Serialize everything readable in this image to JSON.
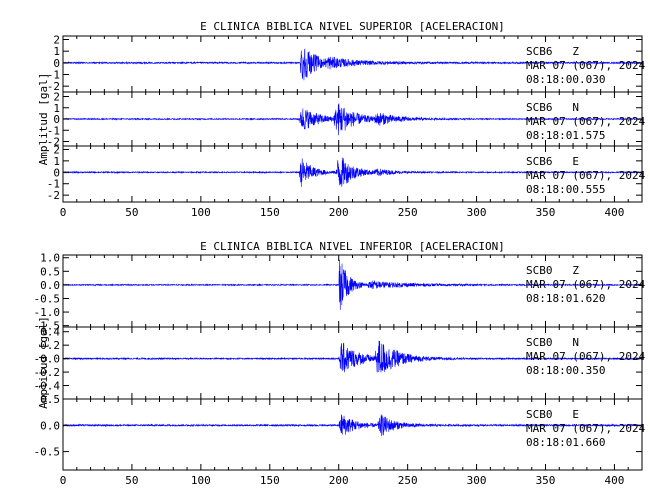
{
  "chart_data": [
    {
      "type": "line",
      "title": "E CLINICA BIBLICA NIVEL SUPERIOR [ACELERACION]",
      "xlabel": "",
      "ylabel": "Amplitud [gal]",
      "xlim": [
        0,
        420
      ],
      "x_ticks": [
        "0",
        "50",
        "100",
        "150",
        "200",
        "250",
        "300",
        "350",
        "400"
      ],
      "x_tick_values": [
        0,
        50,
        100,
        150,
        200,
        250,
        300,
        350,
        400
      ],
      "line_color": "#0000ff",
      "panels": [
        {
          "station": "SCB6",
          "component": "Z",
          "date": "MAR 07 (067), 2024",
          "time": "08:18:00.030",
          "ylim": [
            -2.5,
            2.3
          ],
          "y_ticks": [
            "2",
            "1",
            "0",
            "-1",
            "-2"
          ],
          "y_tick_values": [
            2,
            1,
            0,
            -1,
            -2
          ],
          "noise": 0.06,
          "events": [
            {
              "onset": 172,
              "peak": 2.0,
              "rise": 0.8,
              "decay": 10
            },
            {
              "onset": 190,
              "peak": 0.35,
              "rise": 3,
              "decay": 30
            }
          ]
        },
        {
          "station": "SCB6",
          "component": "N",
          "date": "MAR 07 (067), 2024",
          "time": "08:18:01.575",
          "ylim": [
            -2.4,
            2.4
          ],
          "y_ticks": [
            "2",
            "1",
            "0",
            "-1",
            "-2"
          ],
          "y_tick_values": [
            2,
            1,
            0,
            -1,
            -2
          ],
          "noise": 0.05,
          "events": [
            {
              "onset": 171,
              "peak": 1.4,
              "rise": 3,
              "decay": 12
            },
            {
              "onset": 196,
              "peak": 1.9,
              "rise": 4,
              "decay": 12
            },
            {
              "onset": 225,
              "peak": 0.6,
              "rise": 4,
              "decay": 15
            }
          ]
        },
        {
          "station": "SCB6",
          "component": "E",
          "date": "MAR 07 (067), 2024",
          "time": "08:18:00.555",
          "ylim": [
            -2.6,
            2.3
          ],
          "y_ticks": [
            "2",
            "1",
            "0",
            "-1",
            "-2"
          ],
          "y_tick_values": [
            2,
            1,
            0,
            -1,
            -2
          ],
          "noise": 0.05,
          "events": [
            {
              "onset": 171,
              "peak": 1.7,
              "rise": 2,
              "decay": 8
            },
            {
              "onset": 198,
              "peak": 2.0,
              "rise": 2,
              "decay": 10
            },
            {
              "onset": 225,
              "peak": 0.3,
              "rise": 4,
              "decay": 12
            }
          ]
        }
      ]
    },
    {
      "type": "line",
      "title": "E CLINICA BIBLICA NIVEL INFERIOR [ACELERACION]",
      "xlabel": "",
      "ylabel": "Amplitud [gal]",
      "xlim": [
        0,
        420
      ],
      "x_ticks": [
        "0",
        "50",
        "100",
        "150",
        "200",
        "250",
        "300",
        "350",
        "400"
      ],
      "x_tick_values": [
        0,
        50,
        100,
        150,
        200,
        250,
        300,
        350,
        400
      ],
      "line_color": "#0000ff",
      "panels": [
        {
          "station": "SCB0",
          "component": "Z",
          "date": "MAR 07 (067), 2024",
          "time": "08:18:01.620",
          "ylim": [
            -1.55,
            1.1
          ],
          "y_ticks": [
            "1.0",
            "0.5",
            "0.0",
            "-0.5",
            "-1.0",
            "-1.5"
          ],
          "y_tick_values": [
            1.0,
            0.5,
            0.0,
            -0.5,
            -1.0,
            -1.5
          ],
          "noise": 0.02,
          "events": [
            {
              "onset": 200,
              "peak": 1.2,
              "rise": 0.6,
              "decay": 6
            },
            {
              "onset": 220,
              "peak": 0.15,
              "rise": 4,
              "decay": 30
            }
          ]
        },
        {
          "station": "SCB0",
          "component": "N",
          "date": "MAR 07 (067), 2024",
          "time": "08:18:00.350",
          "ylim": [
            -0.6,
            0.47
          ],
          "y_ticks": [
            "0.4",
            "0.2",
            "-0.0",
            "-0.2",
            "-0.4"
          ],
          "y_tick_values": [
            0.4,
            0.2,
            0.0,
            -0.2,
            -0.4
          ],
          "noise": 0.01,
          "events": [
            {
              "onset": 200,
              "peak": 0.3,
              "rise": 2,
              "decay": 12
            },
            {
              "onset": 226,
              "peak": 0.33,
              "rise": 3,
              "decay": 14
            }
          ]
        },
        {
          "station": "SCB0",
          "component": "E",
          "date": "MAR 07 (067), 2024",
          "time": "08:18:01.660",
          "ylim": [
            -0.85,
            0.5
          ],
          "y_ticks": [
            "0.5",
            "0.0",
            "-0.5"
          ],
          "y_tick_values": [
            0.5,
            0.0,
            -0.5
          ],
          "noise": 0.015,
          "events": [
            {
              "onset": 200,
              "peak": 0.28,
              "rise": 2,
              "decay": 10
            },
            {
              "onset": 228,
              "peak": 0.26,
              "rise": 3,
              "decay": 10
            }
          ]
        }
      ]
    }
  ]
}
